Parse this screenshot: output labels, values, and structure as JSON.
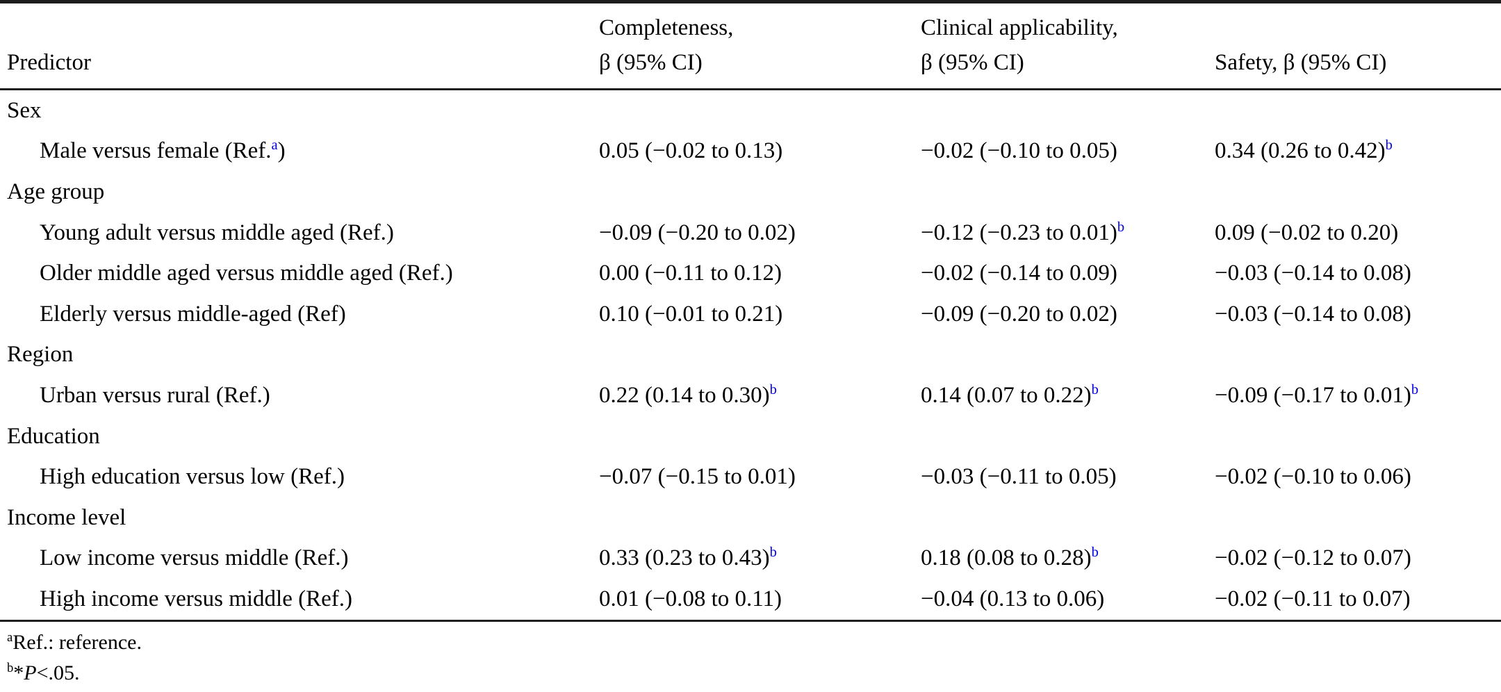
{
  "colors": {
    "background": "#ffffff",
    "text": "#000000",
    "rule": "#1e1e1e",
    "superscript_link_blue": "#0202e0"
  },
  "table": {
    "header": {
      "predictor": "Predictor",
      "completeness_line1": "Completeness,",
      "completeness_line2": "β (95% CI)",
      "clinical_line1": "Clinical applicability,",
      "clinical_line2": "β (95% CI)",
      "safety": "Safety, β (95% CI)"
    },
    "rows": [
      {
        "type": "section",
        "label": "Sex"
      },
      {
        "type": "data",
        "predictor": {
          "pre": "Male versus female (Ref.",
          "sup": "a",
          "post": ")"
        },
        "completeness": {
          "pre": "0.05 (−0.02 to 0.13)"
        },
        "clinical": {
          "pre": "−0.02 (−0.10 to 0.05)"
        },
        "safety": {
          "pre": "0.34 (0.26 to 0.42)",
          "sup": "b"
        }
      },
      {
        "type": "section",
        "label": "Age group"
      },
      {
        "type": "data",
        "predictor": {
          "pre": "Young adult versus middle aged (Ref.)"
        },
        "completeness": {
          "pre": "−0.09 (−0.20 to 0.02)"
        },
        "clinical": {
          "pre": "−0.12 (−0.23 to 0.01)",
          "sup": "b"
        },
        "safety": {
          "pre": "0.09 (−0.02 to 0.20)"
        }
      },
      {
        "type": "data",
        "predictor": {
          "pre": "Older middle aged versus middle aged (Ref.)"
        },
        "completeness": {
          "pre": "0.00 (−0.11 to 0.12)"
        },
        "clinical": {
          "pre": "−0.02 (−0.14 to 0.09)"
        },
        "safety": {
          "pre": "−0.03 (−0.14 to 0.08)"
        }
      },
      {
        "type": "data",
        "predictor": {
          "pre": "Elderly versus middle-aged (Ref)"
        },
        "completeness": {
          "pre": "0.10 (−0.01 to 0.21)"
        },
        "clinical": {
          "pre": "−0.09 (−0.20 to 0.02)"
        },
        "safety": {
          "pre": "−0.03 (−0.14 to 0.08)"
        }
      },
      {
        "type": "section",
        "label": "Region"
      },
      {
        "type": "data",
        "predictor": {
          "pre": "Urban versus rural (Ref.)"
        },
        "completeness": {
          "pre": "0.22 (0.14 to 0.30)",
          "sup": "b"
        },
        "clinical": {
          "pre": "0.14 (0.07 to 0.22)",
          "sup": "b"
        },
        "safety": {
          "pre": "−0.09 (−0.17 to 0.01)",
          "sup": "b"
        }
      },
      {
        "type": "section",
        "label": "Education"
      },
      {
        "type": "data",
        "predictor": {
          "pre": "High education versus low (Ref.)"
        },
        "completeness": {
          "pre": "−0.07 (−0.15 to 0.01)"
        },
        "clinical": {
          "pre": "−0.03 (−0.11 to 0.05)"
        },
        "safety": {
          "pre": "−0.02 (−0.10 to 0.06)"
        }
      },
      {
        "type": "section",
        "label": "Income level"
      },
      {
        "type": "data",
        "predictor": {
          "pre": "Low income versus middle (Ref.)"
        },
        "completeness": {
          "pre": "0.33 (0.23 to 0.43)",
          "sup": "b"
        },
        "clinical": {
          "pre": "0.18 (0.08 to 0.28)",
          "sup": "b"
        },
        "safety": {
          "pre": "−0.02 (−0.12 to 0.07)"
        }
      },
      {
        "type": "data",
        "predictor": {
          "pre": "High income versus middle (Ref.)"
        },
        "completeness": {
          "pre": "0.01 (−0.08 to 0.11)"
        },
        "clinical": {
          "pre": "−0.04 (0.13 to 0.06)"
        },
        "safety": {
          "pre": "−0.02 (−0.11 to 0.07)"
        }
      }
    ]
  },
  "footnotes": {
    "a": {
      "sup": "a",
      "text": "Ref.: reference."
    },
    "b": {
      "sup": "b",
      "star": "*",
      "p": "P",
      "rest": "<.05."
    }
  }
}
